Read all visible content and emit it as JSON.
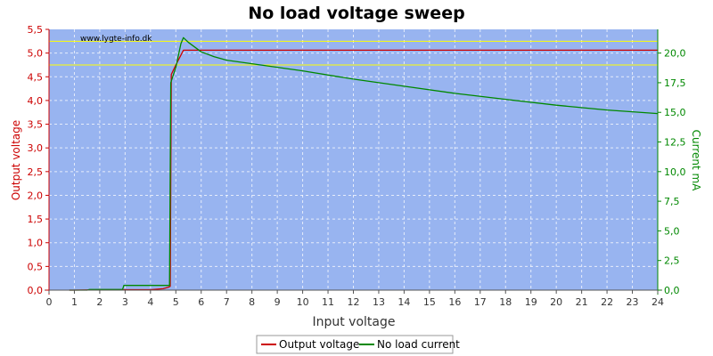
{
  "chart_data": {
    "type": "line",
    "title": "No load voltage sweep",
    "xlabel": "Input voltage",
    "ylabel_left": "Output voltage",
    "ylabel_right": "Current mA",
    "watermark": "www.lygte-info.dk",
    "xlim": [
      0,
      24
    ],
    "ylim_left": [
      0,
      5.5
    ],
    "ylim_right": [
      0,
      22
    ],
    "x_ticks": [
      "0",
      "1",
      "2",
      "3",
      "4",
      "5",
      "6",
      "7",
      "8",
      "9",
      "10",
      "11",
      "12",
      "13",
      "14",
      "15",
      "16",
      "17",
      "18",
      "19",
      "20",
      "21",
      "22",
      "23",
      "24"
    ],
    "y_left_ticks": [
      "0,0",
      "0,5",
      "1,0",
      "1,5",
      "2,0",
      "2,5",
      "3,0",
      "3,5",
      "4,0",
      "4,5",
      "5,0",
      "5,5"
    ],
    "y_right_ticks": [
      "0,0",
      "2,5",
      "5,0",
      "7,5",
      "10,0",
      "12,5",
      "15,0",
      "17,5",
      "20,0"
    ],
    "grid": true,
    "legend_position": "bottom",
    "colors": {
      "plot_bg": "#98b4f0",
      "output_voltage": "#cc0000",
      "no_load_current": "#008800",
      "reference_lines": "#ffff00",
      "left_axis": "#cc0000",
      "right_axis": "#008800"
    },
    "reference_lines_left": [
      5.25,
      4.75
    ],
    "series": [
      {
        "name": "Output voltage",
        "axis": "left",
        "x": [
          0.8,
          1.0,
          2.0,
          3.0,
          4.0,
          4.5,
          4.7,
          4.78,
          4.82,
          5.0,
          5.3,
          6,
          10,
          15,
          20,
          24
        ],
        "y": [
          0.0,
          0.0,
          0.01,
          0.01,
          0.01,
          0.03,
          0.06,
          0.08,
          4.55,
          4.75,
          5.06,
          5.06,
          5.06,
          5.06,
          5.06,
          5.06
        ]
      },
      {
        "name": "No load current",
        "axis": "right",
        "x": [
          0.8,
          1.5,
          1.6,
          2.9,
          2.95,
          4.75,
          4.8,
          5.0,
          5.2,
          5.3,
          5.5,
          6.0,
          6.5,
          7.0,
          8,
          10,
          12,
          14,
          16,
          18,
          20,
          22,
          24
        ],
        "y": [
          0.0,
          0.0,
          0.05,
          0.05,
          0.4,
          0.4,
          17.5,
          18.8,
          20.8,
          21.3,
          20.9,
          20.1,
          19.7,
          19.4,
          19.1,
          18.5,
          17.8,
          17.2,
          16.6,
          16.1,
          15.6,
          15.2,
          14.9
        ]
      }
    ]
  }
}
